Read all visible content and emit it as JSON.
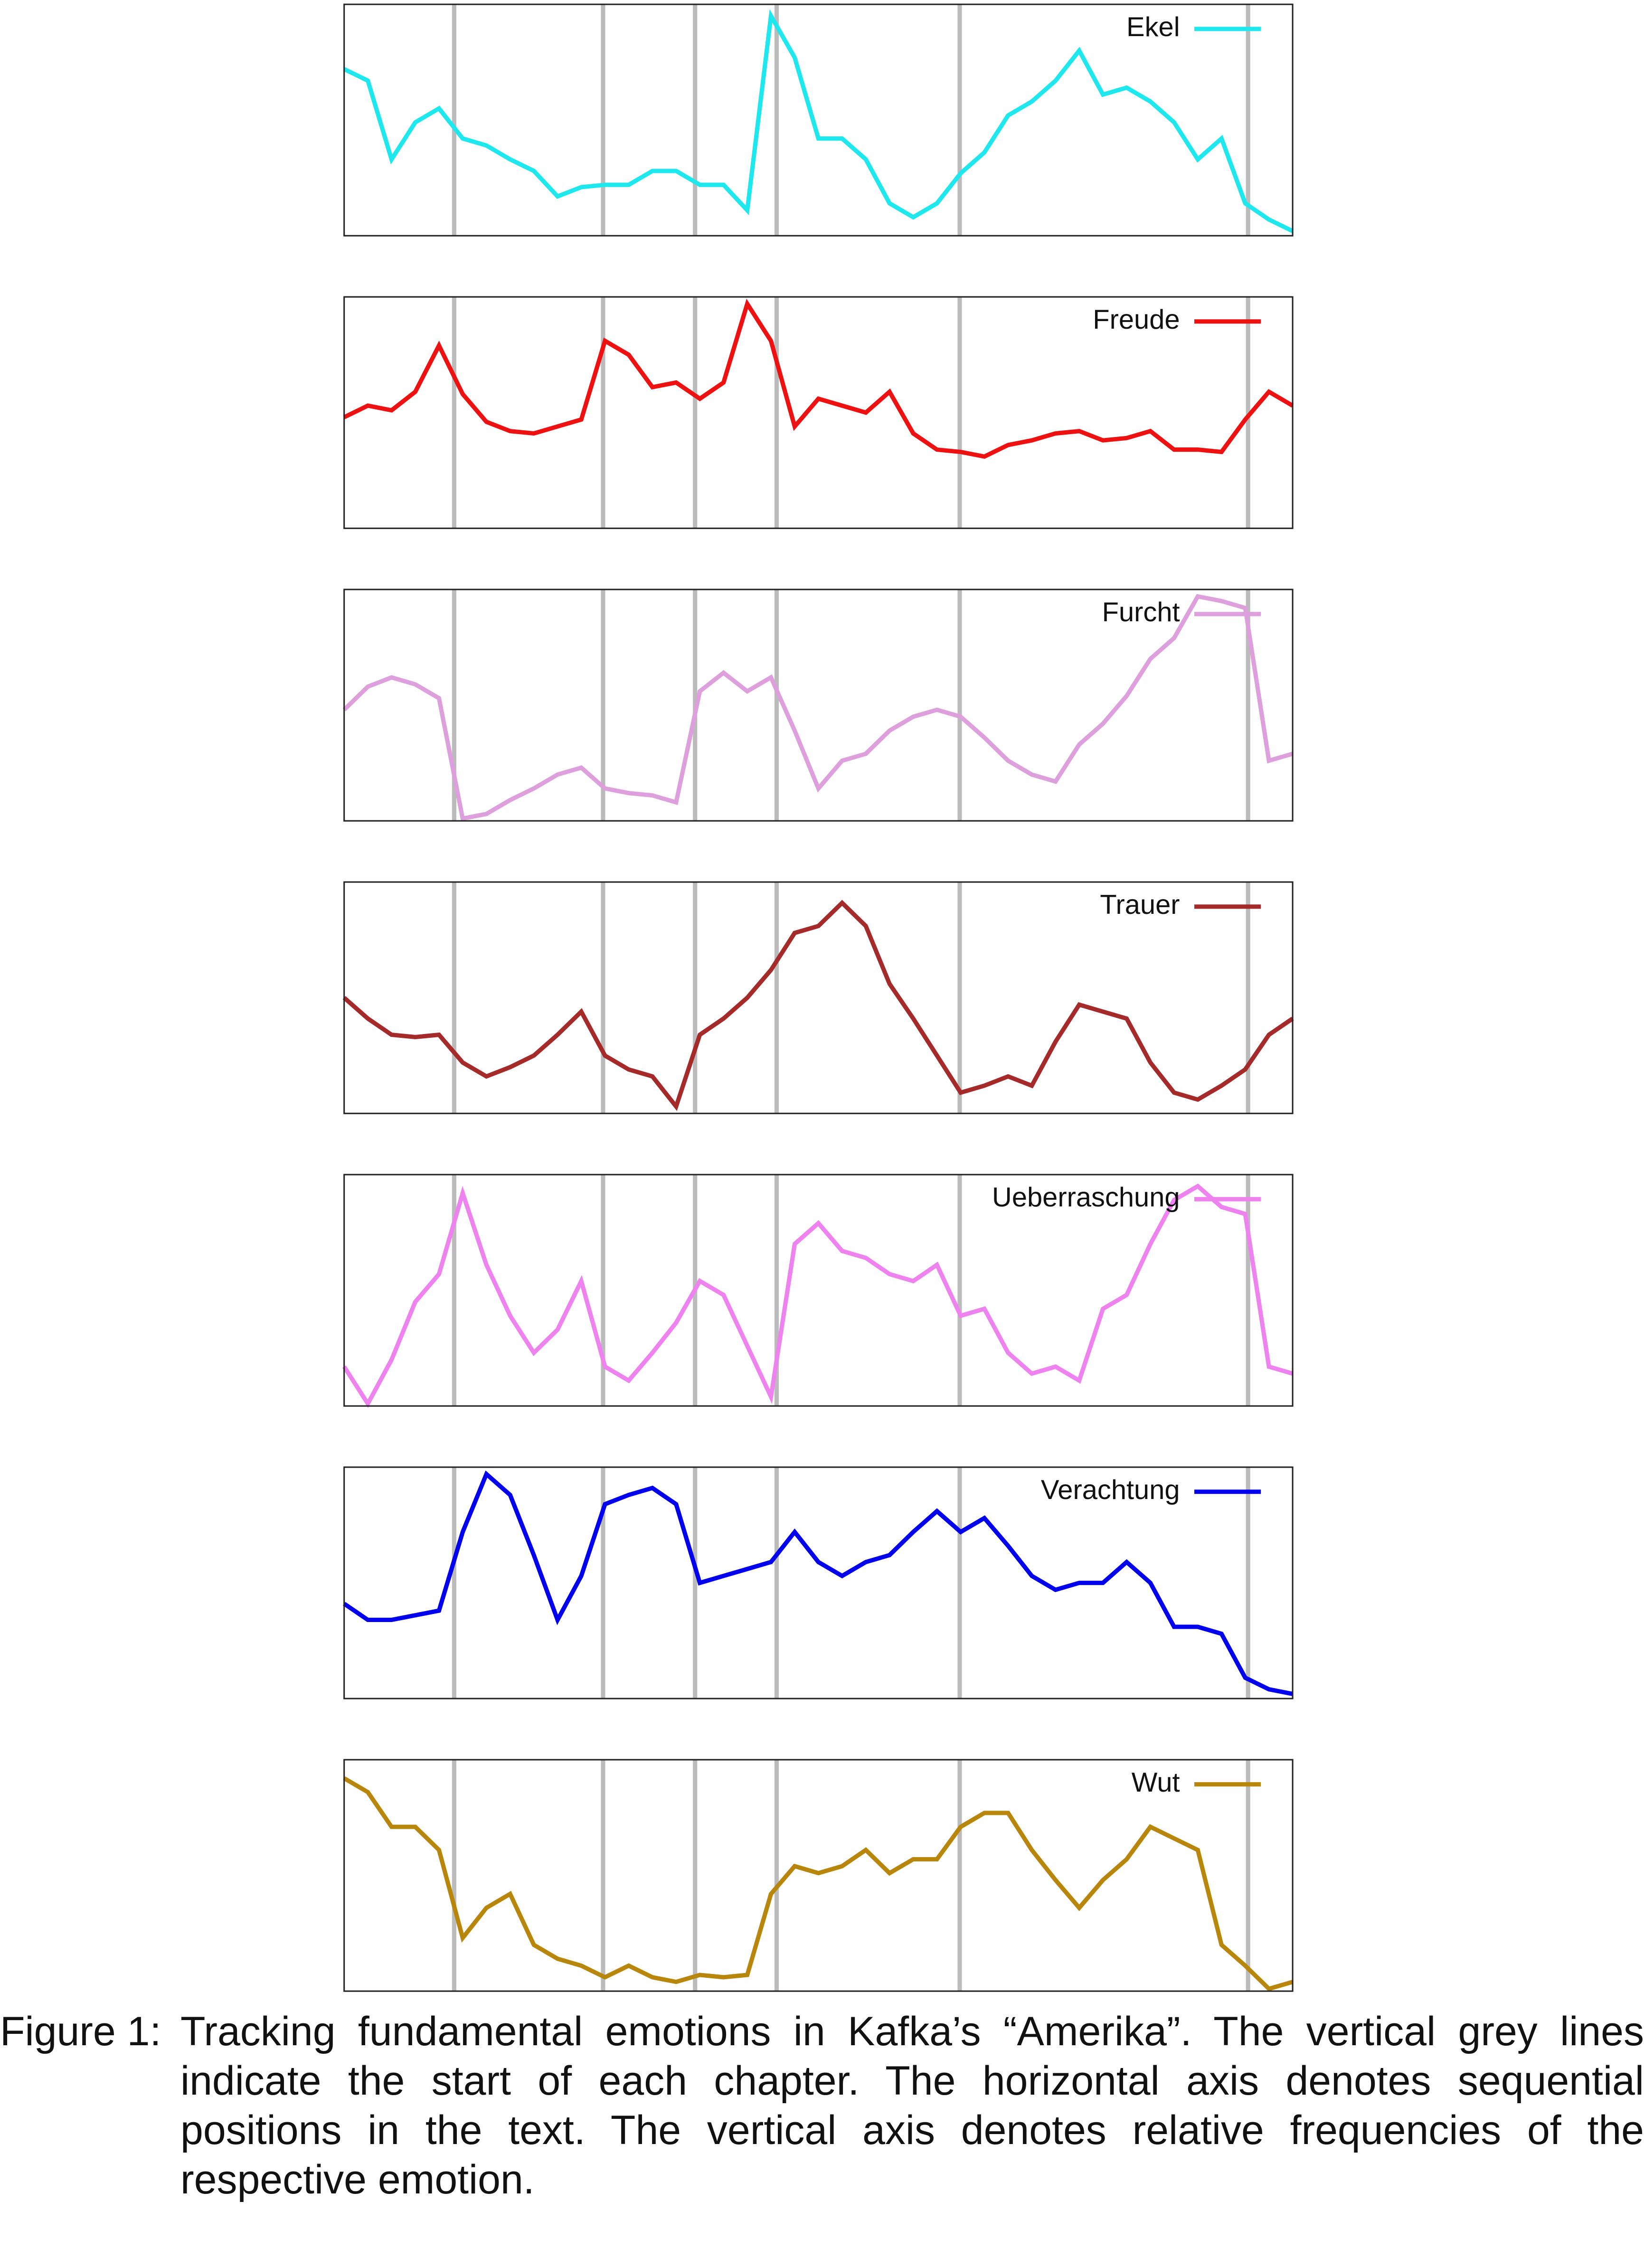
{
  "chart_data": [
    {
      "type": "line",
      "xlim": [
        0,
        100
      ],
      "ylim": [
        0,
        100
      ],
      "legend": "upper right",
      "vlines": [
        11.6,
        27.3,
        37,
        45.6,
        64.9,
        95.3
      ],
      "x": [
        0,
        2.5,
        5,
        7.5,
        10,
        12.5,
        15,
        17.5,
        20,
        22.5,
        25,
        27.5,
        30,
        32.5,
        35,
        37.5,
        40,
        42.5,
        45,
        47.5,
        50,
        52.5,
        55,
        57.5,
        60,
        62.5,
        65,
        67.5,
        70,
        72.5,
        75,
        77.5,
        80,
        82.5,
        85,
        87.5,
        90,
        92.5,
        95,
        97.5,
        100
      ],
      "series": [
        {
          "name": "Ekel",
          "color": "#1ee8ee",
          "values": [
            72,
            67,
            33,
            49,
            55,
            42,
            39,
            33,
            28,
            17,
            21,
            22,
            22,
            28,
            28,
            22,
            22,
            11,
            95,
            77,
            42,
            42,
            33,
            14,
            8,
            14,
            27,
            36,
            52,
            58,
            67,
            80,
            61,
            64,
            58,
            49,
            33,
            42,
            14,
            7,
            2
          ]
        }
      ]
    },
    {
      "type": "line",
      "xlim": [
        0,
        100
      ],
      "ylim": [
        0,
        100
      ],
      "legend": "upper right",
      "vlines": [
        11.6,
        27.3,
        37,
        45.6,
        64.9,
        95.3
      ],
      "x": [
        0,
        2.5,
        5,
        7.5,
        10,
        12.5,
        15,
        17.5,
        20,
        22.5,
        25,
        27.5,
        30,
        32.5,
        35,
        37.5,
        40,
        42.5,
        45,
        47.5,
        50,
        52.5,
        55,
        57.5,
        60,
        62.5,
        65,
        67.5,
        70,
        72.5,
        75,
        77.5,
        80,
        82.5,
        85,
        87.5,
        90,
        92.5,
        95,
        97.5,
        100
      ],
      "series": [
        {
          "name": "Freude",
          "color": "#ee1111",
          "values": [
            48,
            53,
            51,
            59,
            79,
            58,
            46,
            42,
            41,
            44,
            47,
            81,
            75,
            61,
            63,
            56,
            63,
            97,
            81,
            44,
            56,
            53,
            50,
            59,
            41,
            34,
            33,
            31,
            36,
            38,
            41,
            42,
            38,
            39,
            42,
            34,
            34,
            33,
            47,
            59,
            53
          ]
        }
      ]
    },
    {
      "type": "line",
      "xlim": [
        0,
        100
      ],
      "ylim": [
        0,
        100
      ],
      "legend": "upper right",
      "vlines": [
        11.6,
        27.3,
        37,
        45.6,
        64.9,
        95.3
      ],
      "x": [
        0,
        2.5,
        5,
        7.5,
        10,
        12.5,
        15,
        17.5,
        20,
        22.5,
        25,
        27.5,
        30,
        32.5,
        35,
        37.5,
        40,
        42.5,
        45,
        47.5,
        50,
        52.5,
        55,
        57.5,
        60,
        62.5,
        65,
        67.5,
        70,
        72.5,
        75,
        77.5,
        80,
        82.5,
        85,
        87.5,
        90,
        92.5,
        95,
        97.5,
        100
      ],
      "series": [
        {
          "name": "Furcht",
          "color": "#dda0dd",
          "values": [
            48,
            58,
            62,
            59,
            53,
            1,
            3,
            9,
            14,
            20,
            23,
            14,
            12,
            11,
            8,
            56,
            64,
            56,
            62,
            39,
            14,
            26,
            29,
            39,
            45,
            48,
            45,
            36,
            26,
            20,
            17,
            33,
            42,
            54,
            70,
            79,
            97,
            95,
            92,
            26,
            29
          ]
        }
      ]
    },
    {
      "type": "line",
      "xlim": [
        0,
        100
      ],
      "ylim": [
        0,
        100
      ],
      "legend": "upper right",
      "vlines": [
        11.6,
        27.3,
        37,
        45.6,
        64.9,
        95.3
      ],
      "x": [
        0,
        2.5,
        5,
        7.5,
        10,
        12.5,
        15,
        17.5,
        20,
        22.5,
        25,
        27.5,
        30,
        32.5,
        35,
        37.5,
        40,
        42.5,
        45,
        47.5,
        50,
        52.5,
        55,
        57.5,
        60,
        62.5,
        65,
        67.5,
        70,
        72.5,
        75,
        77.5,
        80,
        82.5,
        85,
        87.5,
        90,
        92.5,
        95,
        97.5,
        100
      ],
      "series": [
        {
          "name": "Trauer",
          "color": "#a52a2a",
          "values": [
            50,
            41,
            34,
            33,
            34,
            22,
            16,
            20,
            25,
            34,
            44,
            25,
            19,
            16,
            3,
            34,
            41,
            50,
            62,
            78,
            81,
            91,
            81,
            56,
            41,
            25,
            9,
            12,
            16,
            12,
            31,
            47,
            44,
            41,
            22,
            9,
            6,
            12,
            19,
            34,
            41
          ]
        }
      ]
    },
    {
      "type": "line",
      "xlim": [
        0,
        100
      ],
      "ylim": [
        0,
        100
      ],
      "legend": "upper right",
      "vlines": [
        11.6,
        27.3,
        37,
        45.6,
        64.9,
        95.3
      ],
      "x": [
        0,
        2.5,
        5,
        7.5,
        10,
        12.5,
        15,
        17.5,
        20,
        22.5,
        25,
        27.5,
        30,
        32.5,
        35,
        37.5,
        40,
        42.5,
        45,
        47.5,
        50,
        52.5,
        55,
        57.5,
        60,
        62.5,
        65,
        67.5,
        70,
        72.5,
        75,
        77.5,
        80,
        82.5,
        85,
        87.5,
        90,
        92.5,
        95,
        97.5,
        100
      ],
      "series": [
        {
          "name": "Ueberraschung",
          "color": "#ee82ee",
          "values": [
            17,
            1,
            20,
            45,
            57,
            92,
            61,
            39,
            23,
            33,
            54,
            17,
            11,
            23,
            36,
            54,
            48,
            26,
            4,
            70,
            79,
            67,
            64,
            57,
            54,
            61,
            39,
            42,
            23,
            14,
            17,
            11,
            42,
            48,
            70,
            89,
            95,
            86,
            83,
            17,
            14
          ]
        }
      ]
    },
    {
      "type": "line",
      "xlim": [
        0,
        100
      ],
      "ylim": [
        0,
        100
      ],
      "legend": "upper right",
      "vlines": [
        11.6,
        27.3,
        37,
        45.6,
        64.9,
        95.3
      ],
      "x": [
        0,
        2.5,
        5,
        7.5,
        10,
        12.5,
        15,
        17.5,
        20,
        22.5,
        25,
        27.5,
        30,
        32.5,
        35,
        37.5,
        40,
        42.5,
        45,
        47.5,
        50,
        52.5,
        55,
        57.5,
        60,
        62.5,
        65,
        67.5,
        70,
        72.5,
        75,
        77.5,
        80,
        82.5,
        85,
        87.5,
        90,
        92.5,
        95,
        97.5,
        100
      ],
      "series": [
        {
          "name": "Verachtung",
          "color": "#0000ee",
          "values": [
            41,
            34,
            34,
            36,
            38,
            72,
            97,
            88,
            62,
            34,
            53,
            84,
            88,
            91,
            84,
            50,
            53,
            56,
            59,
            72,
            59,
            53,
            59,
            62,
            72,
            81,
            72,
            78,
            66,
            53,
            47,
            50,
            50,
            59,
            50,
            31,
            31,
            28,
            9,
            4,
            2
          ]
        }
      ]
    },
    {
      "type": "line",
      "xlim": [
        0,
        100
      ],
      "ylim": [
        0,
        100
      ],
      "legend": "upper right",
      "vlines": [
        11.6,
        27.3,
        37,
        45.6,
        64.9,
        95.3
      ],
      "x": [
        0,
        2.5,
        5,
        7.5,
        10,
        12.5,
        15,
        17.5,
        20,
        22.5,
        25,
        27.5,
        30,
        32.5,
        35,
        37.5,
        40,
        42.5,
        45,
        47.5,
        50,
        52.5,
        55,
        57.5,
        60,
        62.5,
        65,
        67.5,
        70,
        72.5,
        75,
        77.5,
        80,
        82.5,
        85,
        87.5,
        90,
        92.5,
        95,
        97.5,
        100
      ],
      "series": [
        {
          "name": "Wut",
          "color": "#b8860b",
          "values": [
            92,
            86,
            71,
            71,
            61,
            23,
            36,
            42,
            20,
            14,
            11,
            6,
            11,
            6,
            4,
            7,
            6,
            7,
            42,
            54,
            51,
            54,
            61,
            51,
            57,
            57,
            71,
            77,
            77,
            61,
            48,
            36,
            48,
            57,
            71,
            66,
            61,
            20,
            11,
            1,
            4
          ]
        }
      ]
    }
  ],
  "caption": {
    "label": "Figure 1:",
    "text": "Tracking fundamental emotions in Kafka’s “Amerika”.  The vertical grey lines indicate the start of each chapter.  The horizontal axis denotes sequential positions in the text.  The vertical axis denotes relative frequencies of the respective emotion."
  }
}
